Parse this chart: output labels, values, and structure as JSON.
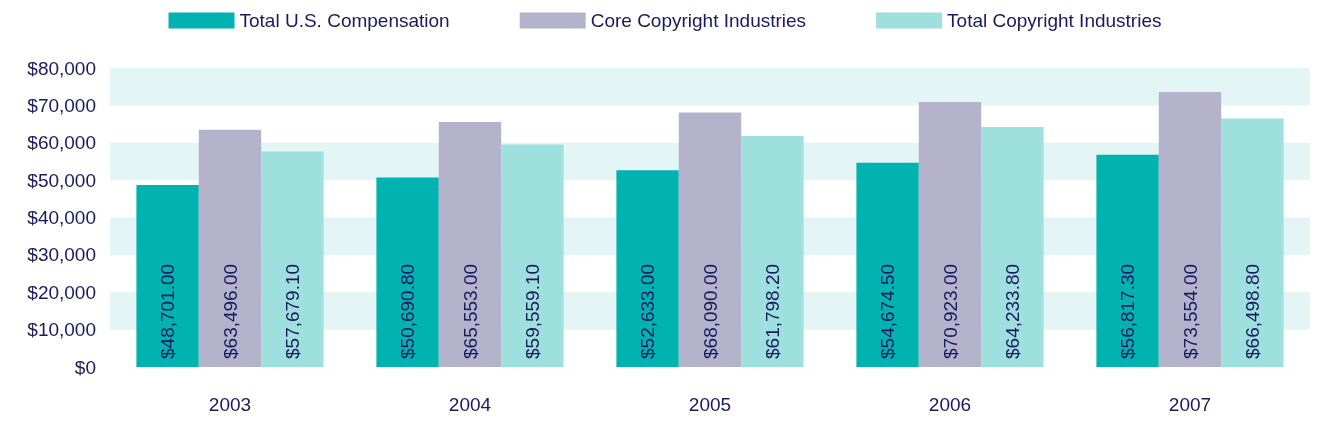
{
  "chart_data": {
    "type": "bar",
    "categories": [
      "2003",
      "2004",
      "2005",
      "2006",
      "2007"
    ],
    "series": [
      {
        "name": "Total U.S. Compensation",
        "color": "#00b2b0",
        "values": [
          48701.0,
          50690.8,
          52633.0,
          54674.5,
          56817.3
        ]
      },
      {
        "name": "Core Copyright Industries",
        "color": "#b5b2cc",
        "values": [
          63496.0,
          65553.0,
          68090.0,
          70923.0,
          73554.0
        ]
      },
      {
        "name": "Total Copyright Industries",
        "color": "#9de0de",
        "values": [
          57679.1,
          59559.1,
          61798.2,
          64233.8,
          66498.8
        ]
      }
    ],
    "value_labels": [
      [
        "$48,701.00",
        "$50,690.80",
        "$52,633.00",
        "$54,674.50",
        "$56,817.30"
      ],
      [
        "$63,496.00",
        "$65,553.00",
        "$68,090.00",
        "$70,923.00",
        "$73,554.00"
      ],
      [
        "$57,679.10",
        "$59,559.10",
        "$61,798.20",
        "$64,233.80",
        "$66,498.80"
      ]
    ],
    "ylim": [
      0,
      80000
    ],
    "yticks": [
      {
        "value": 0,
        "label": "$0"
      },
      {
        "value": 10000,
        "label": "$10,000"
      },
      {
        "value": 20000,
        "label": "$20,000"
      },
      {
        "value": 30000,
        "label": "$30,000"
      },
      {
        "value": 40000,
        "label": "$40,000"
      },
      {
        "value": 50000,
        "label": "$50,000"
      },
      {
        "value": 60000,
        "label": "$60,000"
      },
      {
        "value": 70000,
        "label": "$70,000"
      },
      {
        "value": 80000,
        "label": "$80,000"
      }
    ],
    "bands": [
      {
        "axis": "y",
        "from": 10000,
        "to": 20000,
        "color": "#e4f5f5"
      },
      {
        "axis": "y",
        "from": 30000,
        "to": 40000,
        "color": "#e4f5f5"
      },
      {
        "axis": "y",
        "from": 50000,
        "to": 60000,
        "color": "#e4f5f5"
      },
      {
        "axis": "y",
        "from": 70000,
        "to": 80000,
        "color": "#e4f5f5"
      }
    ],
    "legend": "top",
    "grid": false
  }
}
